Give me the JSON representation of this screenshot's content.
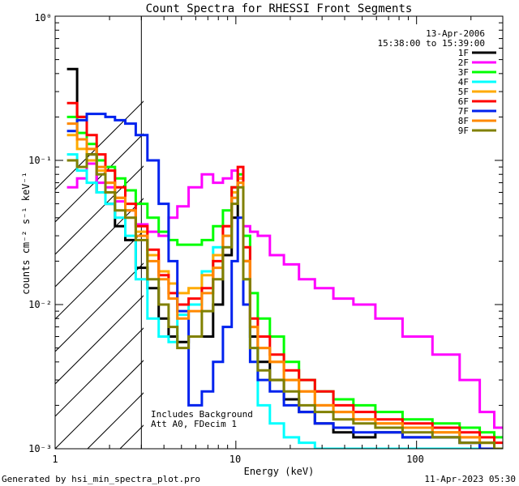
{
  "chart_data": {
    "type": "line",
    "title": "Count Spectra for RHESSI Front Segments",
    "xlabel": "Energy (keV)",
    "ylabel": "counts cm⁻² s⁻¹ keV⁻¹",
    "xscale": "log",
    "yscale": "log",
    "xlim": [
      1,
      300
    ],
    "ylim": [
      0.001,
      1
    ],
    "x_tick_labels": [
      "1",
      "10",
      "100"
    ],
    "x_tick_values": [
      1,
      10,
      100
    ],
    "y_tick_labels": [
      "10⁻³",
      "10⁻²",
      "10⁻¹",
      "10⁰"
    ],
    "y_tick_values": [
      0.001,
      0.01,
      0.1,
      1
    ],
    "date": "13-Apr-2006",
    "time_range": "15:38:00 to 15:39:00",
    "hatched_region_energy_max": 3,
    "annotations": [
      "Includes Background",
      "Att A0, FDecim 1"
    ],
    "legend_position": "top-right",
    "series": [
      {
        "name": "1F",
        "color": "#000000",
        "x": [
          1.25,
          1.4,
          1.6,
          1.8,
          2.0,
          2.3,
          2.6,
          3.0,
          3.5,
          4.0,
          4.5,
          5.0,
          6.0,
          7.0,
          8.0,
          9.0,
          10.0,
          10.5,
          11.5,
          12.5,
          14,
          17,
          20,
          25,
          30,
          40,
          50,
          70,
          100,
          150,
          200,
          250,
          290
        ],
        "y": [
          0.43,
          0.2,
          0.11,
          0.06,
          0.05,
          0.035,
          0.028,
          0.018,
          0.013,
          0.008,
          0.006,
          0.0055,
          0.006,
          0.006,
          0.01,
          0.022,
          0.04,
          0.075,
          0.02,
          0.006,
          0.004,
          0.003,
          0.0022,
          0.0018,
          0.0015,
          0.0013,
          0.0012,
          0.0013,
          0.0012,
          0.0012,
          0.0011,
          0.001,
          0.001
        ]
      },
      {
        "name": "2F",
        "color": "#ff00ff",
        "x": [
          1.25,
          1.4,
          1.6,
          1.8,
          2.0,
          2.3,
          2.6,
          3.0,
          3.5,
          4.0,
          4.5,
          5.0,
          6.0,
          7.0,
          8.0,
          9.0,
          10.0,
          10.5,
          11.5,
          12.5,
          14,
          17,
          20,
          25,
          30,
          40,
          50,
          70,
          100,
          150,
          200,
          250,
          290
        ],
        "y": [
          0.065,
          0.075,
          0.095,
          0.07,
          0.065,
          0.052,
          0.045,
          0.036,
          0.032,
          0.03,
          0.04,
          0.048,
          0.065,
          0.08,
          0.07,
          0.075,
          0.085,
          0.075,
          0.035,
          0.032,
          0.03,
          0.022,
          0.019,
          0.015,
          0.013,
          0.011,
          0.01,
          0.008,
          0.006,
          0.0045,
          0.003,
          0.0018,
          0.0014
        ]
      },
      {
        "name": "3F",
        "color": "#00ff00",
        "x": [
          1.25,
          1.4,
          1.6,
          1.8,
          2.0,
          2.3,
          2.6,
          3.0,
          3.5,
          4.0,
          4.5,
          5.0,
          6.0,
          7.0,
          8.0,
          9.0,
          10.0,
          10.5,
          11.5,
          12.5,
          14,
          17,
          20,
          25,
          30,
          40,
          50,
          70,
          100,
          150,
          200,
          250,
          290
        ],
        "y": [
          0.2,
          0.155,
          0.13,
          0.1,
          0.09,
          0.075,
          0.062,
          0.05,
          0.04,
          0.032,
          0.028,
          0.026,
          0.026,
          0.028,
          0.035,
          0.045,
          0.065,
          0.08,
          0.03,
          0.012,
          0.008,
          0.006,
          0.004,
          0.003,
          0.0025,
          0.0022,
          0.002,
          0.0018,
          0.0016,
          0.0015,
          0.0014,
          0.0013,
          0.0012
        ]
      },
      {
        "name": "4F",
        "color": "#00ffff",
        "x": [
          1.25,
          1.4,
          1.6,
          1.8,
          2.0,
          2.3,
          2.6,
          3.0,
          3.5,
          4.0,
          4.5,
          5.0,
          6.0,
          7.0,
          8.0,
          9.0,
          10.0,
          10.5,
          11.5,
          12.5,
          14,
          17,
          20,
          25,
          30,
          40,
          50,
          70,
          100,
          150,
          200,
          250,
          290
        ],
        "y": [
          0.11,
          0.085,
          0.07,
          0.06,
          0.05,
          0.04,
          0.03,
          0.015,
          0.008,
          0.006,
          0.0055,
          0.0085,
          0.01,
          0.017,
          0.025,
          0.03,
          0.06,
          0.07,
          0.015,
          0.005,
          0.002,
          0.0015,
          0.0012,
          0.0011,
          0.001,
          0.001,
          0.001,
          0.001,
          0.001,
          0.001,
          0.001,
          0.001,
          0.001
        ]
      },
      {
        "name": "5F",
        "color": "#ffaa00",
        "x": [
          1.25,
          1.4,
          1.6,
          1.8,
          2.0,
          2.3,
          2.6,
          3.0,
          3.5,
          4.0,
          4.5,
          5.0,
          6.0,
          7.0,
          8.0,
          9.0,
          10.0,
          10.5,
          11.5,
          12.5,
          14,
          17,
          20,
          25,
          30,
          40,
          50,
          70,
          100,
          150,
          200,
          250,
          290
        ],
        "y": [
          0.15,
          0.12,
          0.1,
          0.085,
          0.07,
          0.055,
          0.045,
          0.032,
          0.022,
          0.017,
          0.014,
          0.012,
          0.013,
          0.016,
          0.022,
          0.035,
          0.06,
          0.075,
          0.02,
          0.007,
          0.005,
          0.004,
          0.003,
          0.0025,
          0.002,
          0.0018,
          0.0016,
          0.0015,
          0.0014,
          0.0013,
          0.0012,
          0.0011,
          0.001
        ]
      },
      {
        "name": "6F",
        "color": "#ff0000",
        "x": [
          1.25,
          1.4,
          1.6,
          1.8,
          2.0,
          2.3,
          2.6,
          3.0,
          3.5,
          4.0,
          4.5,
          5.0,
          6.0,
          7.0,
          8.0,
          9.0,
          10.0,
          10.5,
          11.5,
          12.5,
          14,
          17,
          20,
          25,
          30,
          40,
          50,
          70,
          100,
          150,
          200,
          250,
          290
        ],
        "y": [
          0.25,
          0.2,
          0.15,
          0.11,
          0.085,
          0.065,
          0.05,
          0.035,
          0.024,
          0.016,
          0.012,
          0.01,
          0.011,
          0.013,
          0.02,
          0.035,
          0.065,
          0.09,
          0.025,
          0.008,
          0.006,
          0.0045,
          0.0035,
          0.003,
          0.0025,
          0.002,
          0.0018,
          0.0016,
          0.0015,
          0.0014,
          0.0013,
          0.0012,
          0.0011
        ]
      },
      {
        "name": "7F",
        "color": "#0022ee",
        "x": [
          1.25,
          1.4,
          1.6,
          1.8,
          2.0,
          2.3,
          2.6,
          3.0,
          3.5,
          4.0,
          4.5,
          5.0,
          6.0,
          7.0,
          8.0,
          9.0,
          10.0,
          10.5,
          11.5,
          12.5,
          14,
          17,
          20,
          25,
          30,
          40,
          50,
          70,
          100,
          150,
          200,
          250,
          290
        ],
        "y": [
          0.16,
          0.19,
          0.21,
          0.21,
          0.2,
          0.19,
          0.18,
          0.15,
          0.1,
          0.05,
          0.02,
          0.009,
          0.002,
          0.0025,
          0.004,
          0.007,
          0.02,
          0.04,
          0.01,
          0.004,
          0.003,
          0.0025,
          0.002,
          0.0018,
          0.0015,
          0.0014,
          0.0013,
          0.0013,
          0.0012,
          0.0012,
          0.0011,
          0.001,
          0.001
        ]
      },
      {
        "name": "8F",
        "color": "#ff8800",
        "x": [
          1.25,
          1.4,
          1.6,
          1.8,
          2.0,
          2.3,
          2.6,
          3.0,
          3.5,
          4.0,
          4.5,
          5.0,
          6.0,
          7.0,
          8.0,
          9.0,
          10.0,
          10.5,
          11.5,
          12.5,
          14,
          17,
          20,
          25,
          30,
          40,
          50,
          70,
          100,
          150,
          200,
          250,
          290
        ],
        "y": [
          0.18,
          0.14,
          0.12,
          0.09,
          0.07,
          0.055,
          0.045,
          0.03,
          0.02,
          0.015,
          0.011,
          0.008,
          0.009,
          0.012,
          0.018,
          0.03,
          0.055,
          0.07,
          0.02,
          0.007,
          0.005,
          0.004,
          0.003,
          0.0025,
          0.002,
          0.0018,
          0.0016,
          0.0015,
          0.0014,
          0.0013,
          0.0012,
          0.0011,
          0.001
        ]
      },
      {
        "name": "9F",
        "color": "#808000",
        "x": [
          1.25,
          1.4,
          1.6,
          1.8,
          2.0,
          2.3,
          2.6,
          3.0,
          3.5,
          4.0,
          4.5,
          5.0,
          6.0,
          7.0,
          8.0,
          9.0,
          10.0,
          10.5,
          11.5,
          12.5,
          14,
          17,
          20,
          25,
          30,
          40,
          50,
          70,
          100,
          150,
          200,
          250,
          290
        ],
        "y": [
          0.1,
          0.09,
          0.11,
          0.08,
          0.06,
          0.045,
          0.04,
          0.028,
          0.015,
          0.01,
          0.007,
          0.005,
          0.006,
          0.009,
          0.015,
          0.025,
          0.05,
          0.065,
          0.015,
          0.005,
          0.0035,
          0.003,
          0.0025,
          0.002,
          0.0018,
          0.0016,
          0.0015,
          0.0014,
          0.0013,
          0.0012,
          0.0011,
          0.0011,
          0.001
        ]
      }
    ]
  },
  "footer": {
    "generated_by": "Generated by hsi_min_spectra_plot.pro",
    "timestamp": "11-Apr-2023 05:30"
  }
}
